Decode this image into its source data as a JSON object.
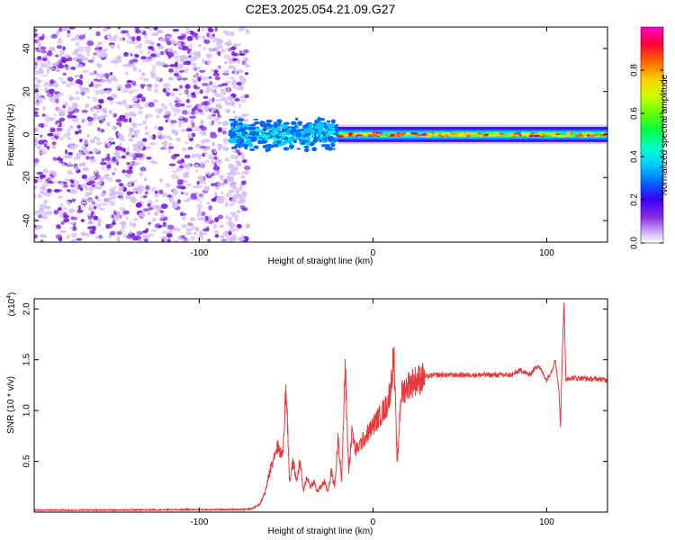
{
  "title": "C2E3.2025.054.21.09.G27",
  "chart_data": [
    {
      "type": "heatmap",
      "xlabel": "Height of straight line (km)",
      "ylabel": "Frequency (Hz)",
      "xlim": [
        -195,
        135
      ],
      "ylim": [
        -50,
        50
      ],
      "xticks": [
        -100,
        0,
        100
      ],
      "yticks": [
        -40,
        -20,
        0,
        20,
        40
      ],
      "colorbar": {
        "label": "Normalized spectral amplitude",
        "range": [
          0,
          1
        ],
        "ticks": [
          0.0,
          0.2,
          0.4,
          0.6,
          0.8
        ]
      },
      "regions": [
        {
          "x": [
            -195,
            -72
          ],
          "freq": [
            -50,
            50
          ],
          "amplitude": [
            0.05,
            0.2
          ]
        },
        {
          "x": [
            -82,
            -20
          ],
          "freq": [
            -8,
            8
          ],
          "amplitude": [
            0.2,
            0.45
          ]
        },
        {
          "x": [
            -20,
            135
          ],
          "freq": [
            -2,
            2
          ],
          "amplitude": [
            0.3,
            1.0
          ]
        }
      ]
    },
    {
      "type": "line",
      "xlabel": "Height of straight line (km)",
      "ylabel": "SNR (10 * v/v)",
      "y_multiplier": "(x10",
      "y_multiplier_exp": "4",
      "xlim": [
        -195,
        135
      ],
      "ylim": [
        0,
        2.1
      ],
      "xticks": [
        -100,
        0,
        100
      ],
      "yticks": [
        0.5,
        1.0,
        1.5,
        2.0
      ],
      "series": [
        {
          "color": "#e8393c",
          "x": [
            -195,
            -150,
            -100,
            -80,
            -70,
            -65,
            -62,
            -58,
            -55,
            -52,
            -50,
            -48,
            -46,
            -44,
            -42,
            -40,
            -38,
            -36,
            -34,
            -32,
            -30,
            -28,
            -26,
            -24,
            -22,
            -20,
            -18,
            -16,
            -14,
            -12,
            -10,
            -8,
            -6,
            -4,
            -2,
            0,
            2,
            4,
            6,
            8,
            10,
            12,
            14,
            16,
            18,
            20,
            25,
            30,
            35,
            40,
            50,
            60,
            70,
            80,
            85,
            90,
            95,
            100,
            103,
            105,
            107,
            108,
            109,
            110,
            111,
            112,
            115,
            120,
            125,
            130,
            135
          ],
          "y": [
            0.02,
            0.02,
            0.025,
            0.025,
            0.03,
            0.08,
            0.2,
            0.5,
            0.65,
            0.55,
            1.25,
            0.3,
            0.5,
            0.3,
            0.5,
            0.2,
            0.35,
            0.25,
            0.3,
            0.2,
            0.25,
            0.3,
            0.2,
            0.4,
            0.25,
            0.75,
            0.3,
            1.45,
            0.4,
            0.8,
            0.6,
            0.65,
            0.7,
            0.75,
            0.8,
            0.85,
            0.9,
            0.95,
            1.0,
            1.05,
            1.2,
            1.55,
            0.45,
            1.15,
            1.2,
            1.25,
            1.3,
            1.33,
            1.35,
            1.35,
            1.35,
            1.35,
            1.35,
            1.35,
            1.4,
            1.35,
            1.45,
            1.3,
            1.4,
            1.5,
            1.2,
            0.85,
            1.6,
            2.05,
            1.3,
            1.32,
            1.32,
            1.32,
            1.31,
            1.31,
            1.3
          ]
        }
      ]
    }
  ]
}
